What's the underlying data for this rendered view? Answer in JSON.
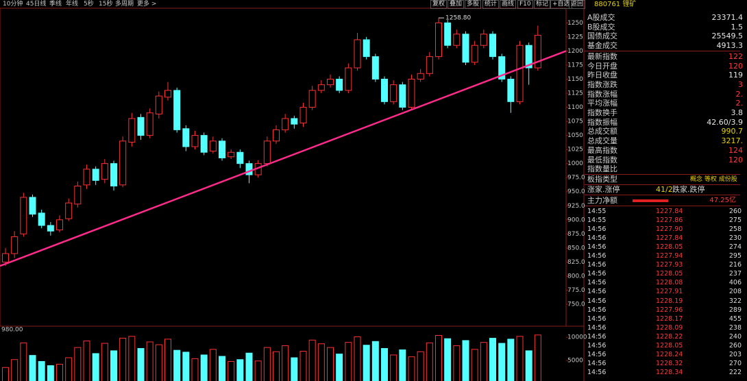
{
  "toolbar": {
    "left": [
      "10分钟",
      "45日线",
      "季线",
      "年线",
      "5秒",
      "15秒",
      "多周期",
      "更多 >"
    ],
    "right": [
      "复权",
      "叠加",
      "多股",
      "统计",
      "画线",
      "F10",
      "标记",
      "+自选",
      "返回"
    ]
  },
  "chart_data": {
    "type": "candlestick",
    "open": [
      825,
      840,
      875,
      940,
      912,
      890,
      882,
      902,
      928,
      962,
      990,
      972,
      1000,
      962,
      1038,
      1082,
      1050,
      1088,
      1118,
      1130,
      1062,
      1030,
      1050,
      1022,
      1040,
      1012,
      1020,
      1000,
      980,
      1000,
      1040,
      1060,
      1080,
      1072,
      1100,
      1130,
      1140,
      1150,
      1130,
      1170,
      1220,
      1190,
      1150,
      1110,
      1140,
      1100,
      1150,
      1160,
      1190,
      1250,
      1210,
      1230,
      1180,
      1210,
      1230,
      1190,
      1150,
      1110,
      1210,
      1170
    ],
    "high": [
      850,
      880,
      948,
      945,
      918,
      896,
      908,
      938,
      968,
      998,
      995,
      1008,
      1005,
      1048,
      1090,
      1088,
      1098,
      1128,
      1145,
      1135,
      1068,
      1058,
      1055,
      1048,
      1045,
      1025,
      1025,
      1005,
      1006,
      1048,
      1068,
      1088,
      1085,
      1108,
      1138,
      1148,
      1158,
      1155,
      1178,
      1232,
      1225,
      1195,
      1155,
      1148,
      1145,
      1158,
      1168,
      1198,
      1258.8,
      1255,
      1238,
      1235,
      1218,
      1238,
      1235,
      1195,
      1155,
      1218,
      1215,
      1245
    ],
    "low": [
      818,
      832,
      870,
      905,
      885,
      872,
      878,
      898,
      922,
      955,
      962,
      965,
      952,
      958,
      1030,
      1042,
      1045,
      1080,
      1112,
      1055,
      1022,
      1025,
      1015,
      1018,
      1005,
      1008,
      992,
      965,
      975,
      995,
      1035,
      1055,
      1062,
      1065,
      1095,
      1125,
      1135,
      1125,
      1125,
      1165,
      1185,
      1145,
      1105,
      1105,
      1095,
      1095,
      1145,
      1155,
      1185,
      1205,
      1205,
      1175,
      1175,
      1205,
      1185,
      1145,
      1090,
      1105,
      1140,
      1165
    ],
    "close": [
      840,
      870,
      940,
      910,
      890,
      880,
      900,
      930,
      960,
      990,
      970,
      1000,
      960,
      1040,
      1080,
      1050,
      1090,
      1120,
      1130,
      1060,
      1030,
      1050,
      1020,
      1040,
      1010,
      1020,
      1000,
      980,
      1000,
      1040,
      1060,
      1080,
      1070,
      1100,
      1130,
      1140,
      1150,
      1130,
      1170,
      1220,
      1190,
      1150,
      1110,
      1140,
      1100,
      1150,
      1160,
      1190,
      1250,
      1210,
      1230,
      1180,
      1210,
      1230,
      1190,
      1150,
      1110,
      1210,
      1170,
      1228
    ],
    "up_color": "#ff3232",
    "down_color": "#54ffff",
    "ylim": [
      711,
      1276
    ],
    "yticks": [
      {
        "value": 750,
        "label": "750.0"
      },
      {
        "value": 775,
        "label": "775.0"
      },
      {
        "value": 800,
        "label": "800.0"
      },
      {
        "value": 825,
        "label": "825.0"
      },
      {
        "value": 850,
        "label": "850.0"
      },
      {
        "value": 875,
        "label": "875.0"
      },
      {
        "value": 900,
        "label": "900.0"
      },
      {
        "value": 925,
        "label": "925.0"
      },
      {
        "value": 950,
        "label": "950.0"
      },
      {
        "value": 975,
        "label": "975.0"
      },
      1000,
      1025,
      1050,
      1075,
      1100,
      1125,
      1150,
      1175,
      1200,
      1225,
      1250
    ],
    "max_label": {
      "value": 1258.8,
      "label": "1258.80"
    },
    "trendline": {
      "values": [
        818,
        1200
      ],
      "color": "#ff2a8a"
    },
    "volume": {
      "label": "980.00",
      "values": [
        3500,
        5200,
        8800,
        6100,
        4800,
        3900,
        4200,
        5600,
        7800,
        9200,
        6500,
        8700,
        7100,
        9800,
        10200,
        7600,
        9000,
        8400,
        9600,
        7200,
        6800,
        5400,
        6200,
        7400,
        5900,
        4800,
        5200,
        6600,
        4900,
        7800,
        6900,
        8200,
        5600,
        7000,
        9400,
        8600,
        7800,
        6400,
        8900,
        10100,
        8300,
        9100,
        7600,
        6200,
        7300,
        5800,
        6900,
        8800,
        10400,
        9700,
        8200,
        9300,
        7400,
        8900,
        9800,
        8700,
        9600,
        10200,
        7100,
        10500
      ],
      "ylim": [
        0,
        11800
      ],
      "yticks": [
        5000,
        10000
      ]
    }
  },
  "panel": {
    "header": "880761 锂矿",
    "stats": [
      {
        "label": "A股成交",
        "value": "23371.4"
      },
      {
        "label": "B股成交",
        "value": "1.5"
      },
      {
        "label": "国债成交",
        "value": "25549.5"
      },
      {
        "label": "基金成交",
        "value": "4913.3"
      },
      {
        "label": "最新指数",
        "value": "122"
      },
      {
        "label": "今日开盘",
        "value": "120"
      },
      {
        "label": "昨日收盘",
        "value": "119"
      },
      {
        "label": "指数涨跌",
        "value": "3"
      },
      {
        "label": "指数涨幅",
        "value": "2."
      },
      {
        "label": "平均涨幅",
        "value": "2."
      },
      {
        "label": "指数换手",
        "value": "3.8"
      },
      {
        "label": "指数振幅",
        "value": "42.60/3.9"
      },
      {
        "label": "总成交额",
        "value": "990.7"
      },
      {
        "label": "总成交量",
        "value": "3217."
      },
      {
        "label": "最高指数",
        "value": "124"
      },
      {
        "label": "最低指数",
        "value": "120"
      },
      {
        "label": "指数量比"
      }
    ],
    "sector_type": {
      "label": "板指类型",
      "value": "概念 等权 成份股"
    },
    "breadth": {
      "label": "涨家.涨停",
      "value": "41/2",
      "label2": "跌家.跌停"
    },
    "net_flow": {
      "label": "主力净额",
      "value": "47.25亿"
    },
    "ticks": [
      [
        "14:55",
        "1227.84",
        "260"
      ],
      [
        "14:55",
        "1227.86",
        "275"
      ],
      [
        "14:56",
        "1227.90",
        "258"
      ],
      [
        "14:56",
        "1227.84",
        "230"
      ],
      [
        "14:56",
        "1228.05",
        "274"
      ],
      [
        "14:56",
        "1227.94",
        "295"
      ],
      [
        "14:56",
        "1227.93",
        "216"
      ],
      [
        "14:56",
        "1228.05",
        "237"
      ],
      [
        "14:56",
        "1228.08",
        "406"
      ],
      [
        "14:56",
        "1227.91",
        "208"
      ],
      [
        "14:56",
        "1228.19",
        "322"
      ],
      [
        "14:56",
        "1227.96",
        "289"
      ],
      [
        "14:56",
        "1228.17",
        "455"
      ],
      [
        "14:56",
        "1228.09",
        "238"
      ],
      [
        "14:56",
        "1228.22",
        "240"
      ],
      [
        "14:56",
        "1228.05",
        "260"
      ],
      [
        "14:56",
        "1228.24",
        "203"
      ],
      [
        "14:56",
        "1228.32",
        "270"
      ],
      [
        "14:56",
        "1228.34",
        "222"
      ]
    ]
  }
}
